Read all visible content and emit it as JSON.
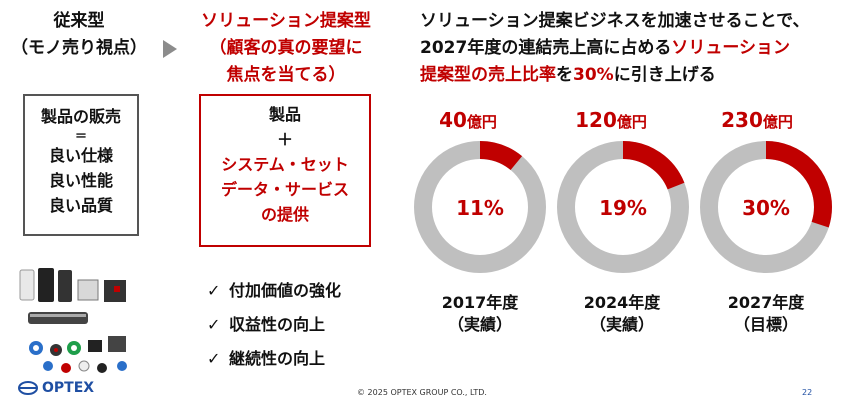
{
  "left": {
    "title_lines": [
      "従来型",
      "（モノ売り視点）"
    ],
    "box_lines": [
      "製品の販売",
      "＝",
      "良い仕様",
      "良い性能",
      "良い品質"
    ]
  },
  "middle": {
    "title_lines": [
      "ソリューション提案型",
      "（顧客の真の要望に",
      "焦点を当てる）"
    ],
    "box_top": [
      "製品",
      "＋"
    ],
    "box_red": [
      "システム・セット",
      "データ・サービス",
      "の提供"
    ],
    "checks": [
      "付加価値の強化",
      "収益性の向上",
      "継続性の向上"
    ],
    "check_mark": "✓"
  },
  "headline": {
    "line1": "ソリューション提案ビジネスを加速させることで、",
    "line2_plain": "2027年度の連結売上高に占める",
    "line2_red": "ソリューション",
    "line3_red1": "提案型の売上比率",
    "line3_plain1": "を",
    "line3_red2": "30%",
    "line3_plain2": "に引き上げる"
  },
  "chart_data": {
    "type": "pie",
    "series": [
      {
        "amount_num": "40",
        "amount_unit": "億円",
        "percent": 11,
        "percent_label": "11%",
        "year": "2017年度",
        "note": "（実績）"
      },
      {
        "amount_num": "120",
        "amount_unit": "億円",
        "percent": 19,
        "percent_label": "19%",
        "year": "2024年度",
        "note": "（実績）"
      },
      {
        "amount_num": "230",
        "amount_unit": "億円",
        "percent": 30,
        "percent_label": "30%",
        "year": "2027年度",
        "note": "（目標）"
      }
    ],
    "colors": {
      "share": "#c00000",
      "rest": "#bfbfbf"
    }
  },
  "footer": {
    "logo": "OPTEX",
    "copyright": "© 2025 OPTEX GROUP CO., LTD.",
    "page": "22"
  }
}
